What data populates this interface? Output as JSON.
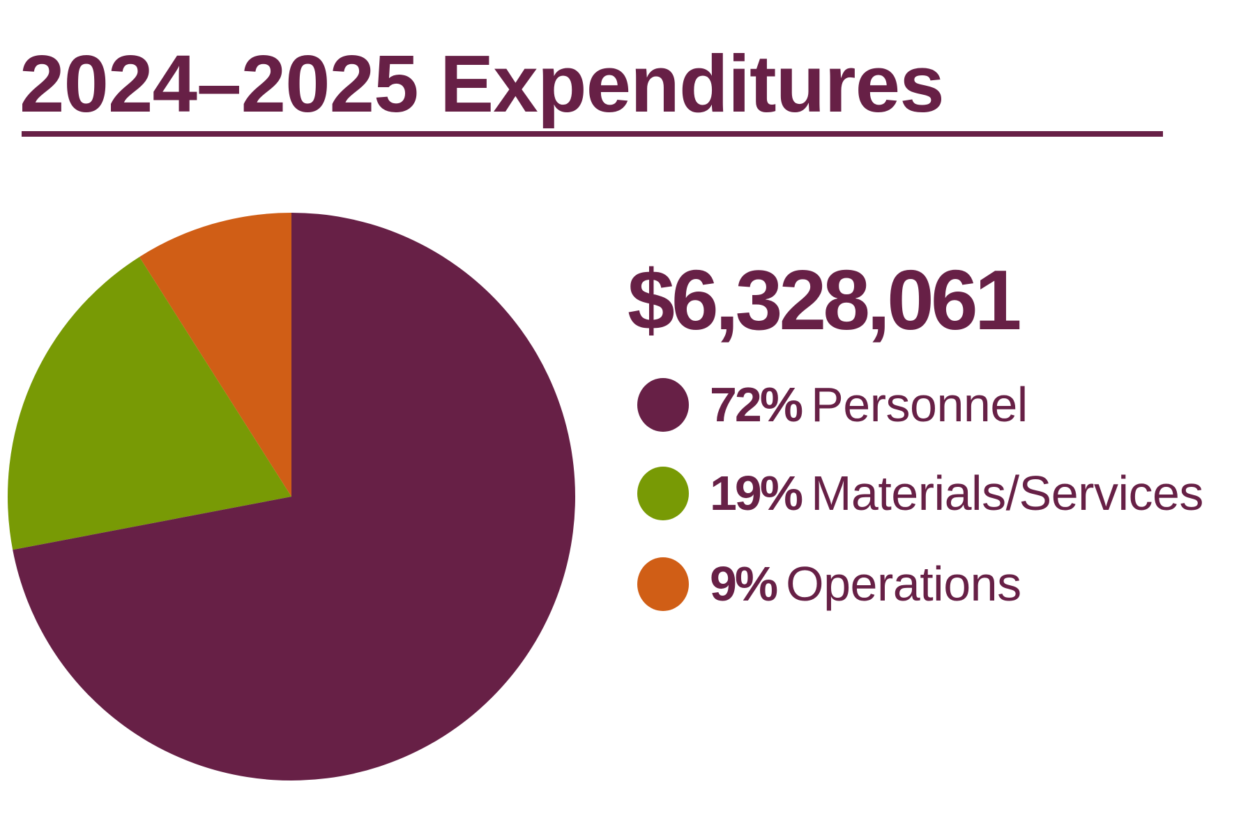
{
  "header": {
    "title": "2024–2025 Expenditures"
  },
  "summary": {
    "total_amount": "$6,328,061"
  },
  "colors": {
    "primary_text": "#672046",
    "personnel": "#672046",
    "materials_services": "#789A05",
    "operations": "#D05E16",
    "background": "#FFFFFF"
  },
  "legend": {
    "items": [
      {
        "percent": "72%",
        "label": "Personnel",
        "color": "#672046",
        "icon": "circle-swatch"
      },
      {
        "percent": "19%",
        "label": "Materials/Services",
        "color": "#789A05",
        "icon": "circle-swatch"
      },
      {
        "percent": "9%",
        "label": "Operations",
        "color": "#D05E16",
        "icon": "circle-swatch"
      }
    ]
  },
  "chart_data": {
    "type": "pie",
    "title": "2024–2025 Expenditures",
    "subtitle": "$6,328,061",
    "total": 6328061,
    "categories": [
      "Personnel",
      "Materials/Services",
      "Operations"
    ],
    "values": [
      72,
      19,
      9
    ],
    "unit": "%",
    "colors": [
      "#672046",
      "#789A05",
      "#D05E16"
    ],
    "start_angle": "12 o'clock",
    "direction": "Personnel clockwise from top; Operations and Materials/Services counter-clockwise from top",
    "legend_position": "right",
    "slice_labels_on_chart": false,
    "xlabel": "",
    "ylabel": ""
  }
}
